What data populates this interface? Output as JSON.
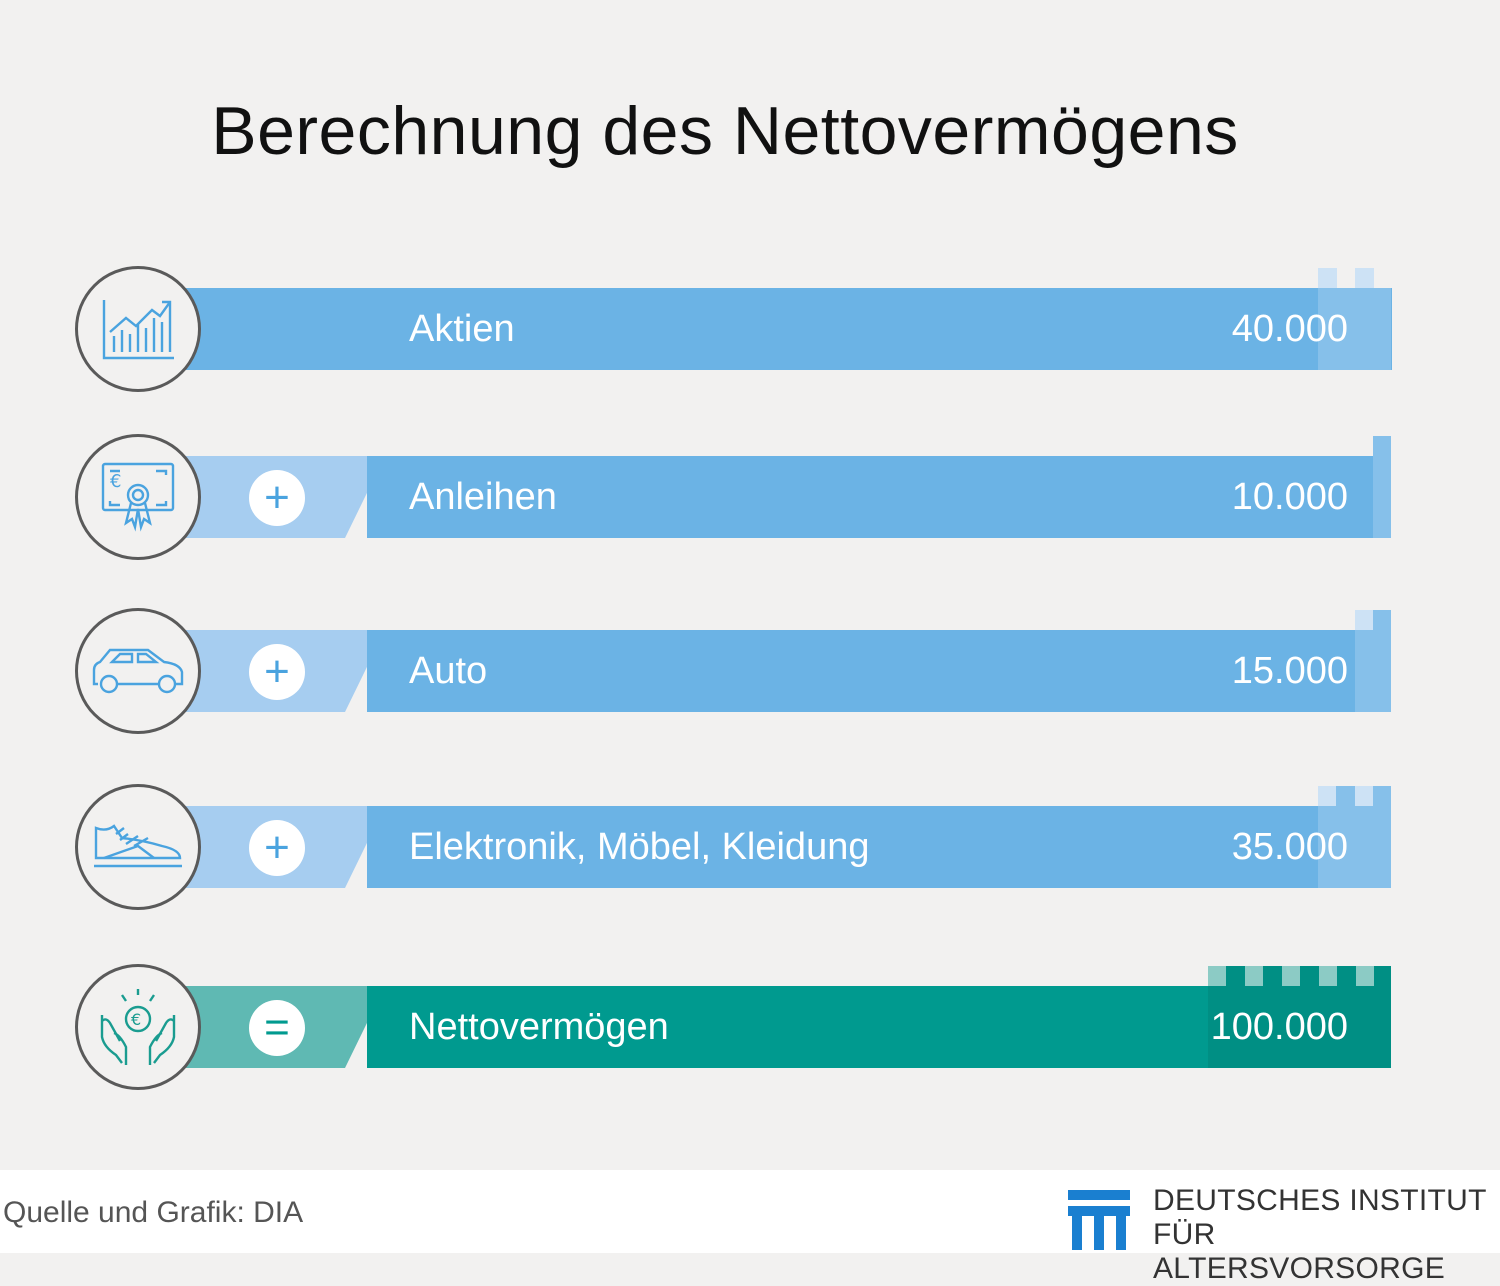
{
  "title": "Berechnung des Nettovermögens",
  "colors": {
    "bar_blue": "#6bb3e5",
    "bar_blue_light": "#a6cdf0",
    "bar_teal": "#009a8f",
    "bar_teal_light": "#5fb9b3",
    "tab_blue": "#cde2f5",
    "icon_blue": "#4aa3df",
    "icon_teal": "#1a9c90"
  },
  "chart_data": {
    "type": "table",
    "title": "Berechnung des Nettovermögens",
    "rows": [
      {
        "label": "Aktien",
        "value": "40.000",
        "operator": "",
        "icon": "stock-chart-icon",
        "kind": "item"
      },
      {
        "label": "Anleihen",
        "value": "10.000",
        "operator": "+",
        "icon": "bond-certificate-icon",
        "kind": "item"
      },
      {
        "label": "Auto",
        "value": "15.000",
        "operator": "+",
        "icon": "car-icon",
        "kind": "item"
      },
      {
        "label": "Elektronik, Möbel, Kleidung",
        "value": "35.000",
        "operator": "+",
        "icon": "sneaker-icon",
        "kind": "item"
      },
      {
        "label": "Nettovermögen",
        "value": "100.000",
        "operator": "=",
        "icon": "hands-euro-coin-icon",
        "kind": "total"
      }
    ]
  },
  "footer": {
    "source": "Quelle und Grafik: DIA",
    "logo_line1": "DEUTSCHES INSTITUT",
    "logo_line2": "FÜR ALTERSVORSORGE"
  }
}
